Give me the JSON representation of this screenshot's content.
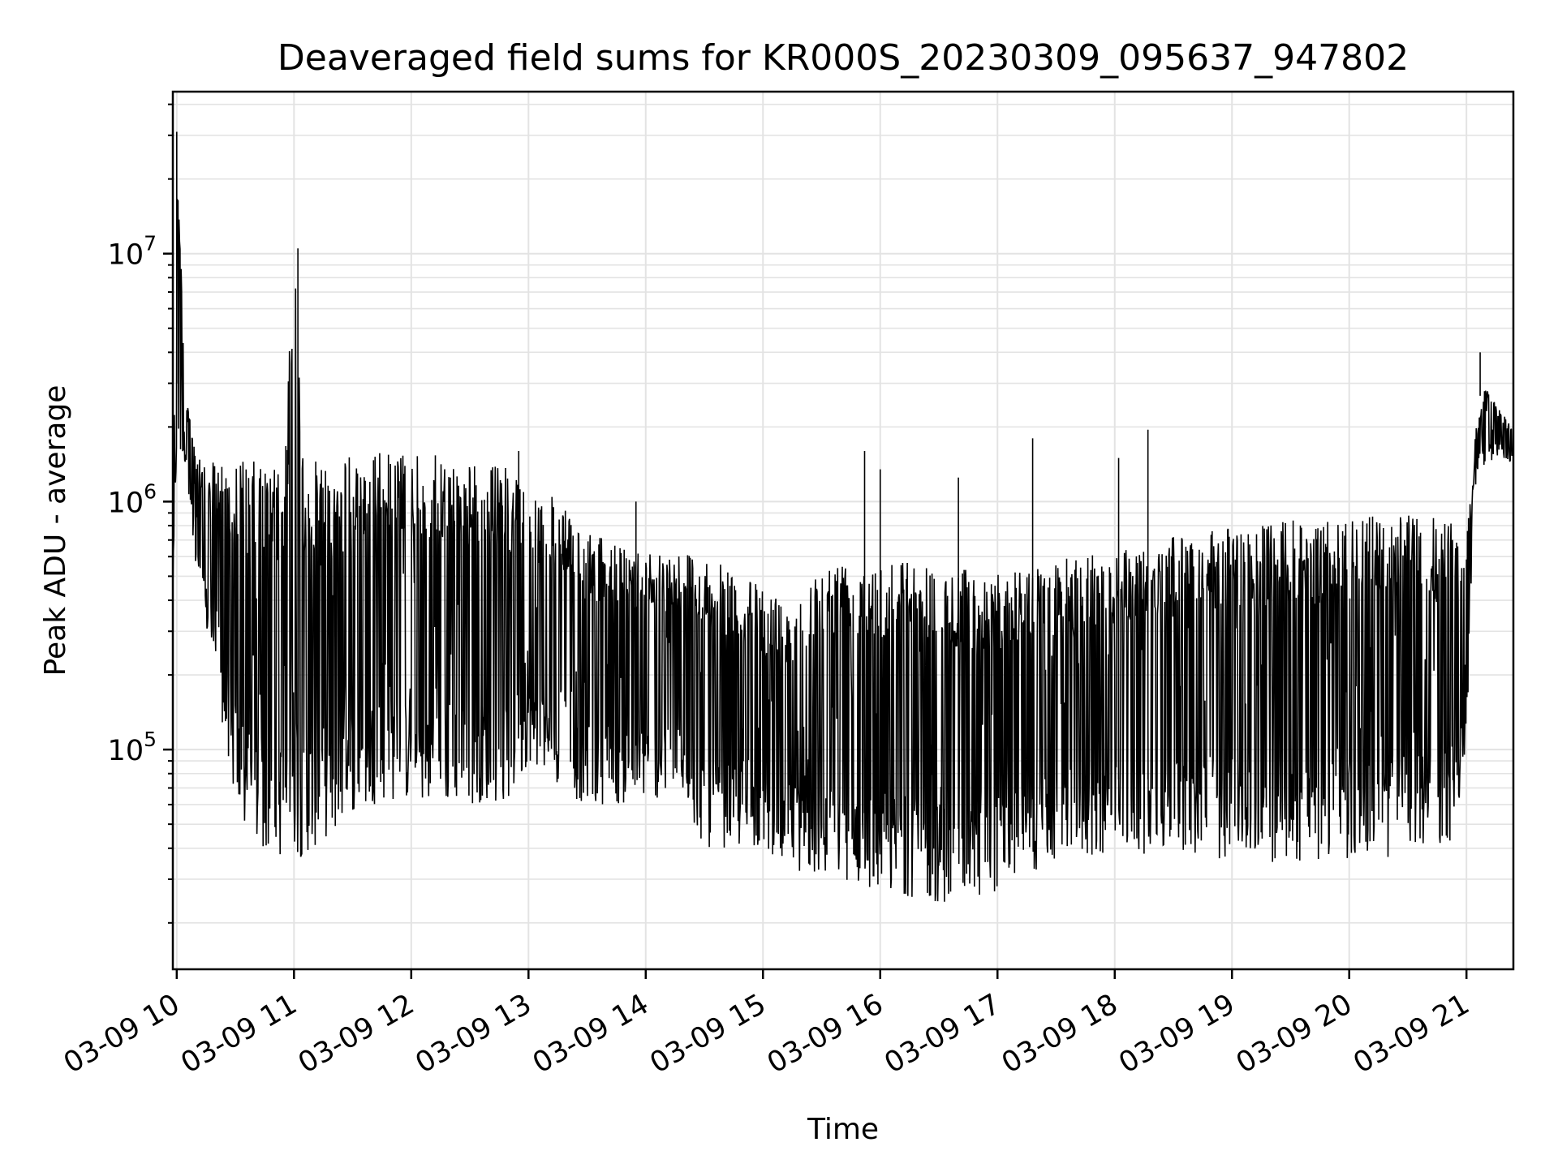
{
  "chart_data": {
    "type": "line",
    "title": "Deaveraged field sums for KR000S_20230309_095637_947802",
    "xlabel": "Time",
    "ylabel": "Peak ADU - average",
    "y_scale": "log",
    "ylim": [
      13000,
      45000000
    ],
    "xlim": [
      "2023-03-09 09:58",
      "2023-03-09 21:24"
    ],
    "grid": true,
    "line_color": "#000000",
    "grid_color": "#e3e3e3",
    "x_tick_labels": [
      "03-09 10",
      "03-09 11",
      "03-09 12",
      "03-09 13",
      "03-09 14",
      "03-09 15",
      "03-09 16",
      "03-09 17",
      "03-09 18",
      "03-09 19",
      "03-09 20",
      "03-09 21"
    ],
    "x_tick_times": [
      "2023-03-09 10:00",
      "2023-03-09 11:00",
      "2023-03-09 12:00",
      "2023-03-09 13:00",
      "2023-03-09 14:00",
      "2023-03-09 15:00",
      "2023-03-09 16:00",
      "2023-03-09 17:00",
      "2023-03-09 18:00",
      "2023-03-09 19:00",
      "2023-03-09 20:00",
      "2023-03-09 21:00"
    ],
    "y_ticks": [
      {
        "value": 100000,
        "base": "10",
        "exp": "5"
      },
      {
        "value": 1000000,
        "base": "10",
        "exp": "6"
      },
      {
        "value": 10000000,
        "base": "10",
        "exp": "7"
      }
    ],
    "series": [
      {
        "x": [
          "2023-03-09 09:58",
          "2023-03-09 10:00",
          "2023-03-09 10:05",
          "2023-03-09 10:10",
          "2023-03-09 10:15",
          "2023-03-09 10:20",
          "2023-03-09 10:25",
          "2023-03-09 10:30",
          "2023-03-09 10:35",
          "2023-03-09 10:40",
          "2023-03-09 10:45",
          "2023-03-09 10:50",
          "2023-03-09 10:55",
          "2023-03-09 11:00",
          "2023-03-09 11:05",
          "2023-03-09 11:10",
          "2023-03-09 11:15",
          "2023-03-09 11:20",
          "2023-03-09 11:30",
          "2023-03-09 11:40",
          "2023-03-09 11:50",
          "2023-03-09 12:00",
          "2023-03-09 12:10",
          "2023-03-09 12:20",
          "2023-03-09 12:30",
          "2023-03-09 12:40",
          "2023-03-09 12:50",
          "2023-03-09 13:00",
          "2023-03-09 13:10",
          "2023-03-09 13:20",
          "2023-03-09 13:30",
          "2023-03-09 13:40",
          "2023-03-09 13:50",
          "2023-03-09 14:00",
          "2023-03-09 14:10",
          "2023-03-09 14:20",
          "2023-03-09 14:30",
          "2023-03-09 14:40",
          "2023-03-09 14:50",
          "2023-03-09 15:00",
          "2023-03-09 15:10",
          "2023-03-09 15:20",
          "2023-03-09 15:30",
          "2023-03-09 15:40",
          "2023-03-09 15:50",
          "2023-03-09 16:00",
          "2023-03-09 16:10",
          "2023-03-09 16:20",
          "2023-03-09 16:30",
          "2023-03-09 16:40",
          "2023-03-09 16:50",
          "2023-03-09 17:00",
          "2023-03-09 17:10",
          "2023-03-09 17:20",
          "2023-03-09 17:30",
          "2023-03-09 17:40",
          "2023-03-09 17:50",
          "2023-03-09 18:00",
          "2023-03-09 18:10",
          "2023-03-09 18:20",
          "2023-03-09 18:30",
          "2023-03-09 18:40",
          "2023-03-09 18:50",
          "2023-03-09 19:00",
          "2023-03-09 19:10",
          "2023-03-09 19:20",
          "2023-03-09 19:30",
          "2023-03-09 19:40",
          "2023-03-09 19:50",
          "2023-03-09 20:00",
          "2023-03-09 20:10",
          "2023-03-09 20:20",
          "2023-03-09 20:30",
          "2023-03-09 20:40",
          "2023-03-09 20:50",
          "2023-03-09 20:55",
          "2023-03-09 21:00",
          "2023-03-09 21:05",
          "2023-03-09 21:10",
          "2023-03-09 21:15",
          "2023-03-09 21:20",
          "2023-03-09 21:24"
        ],
        "low": [
          400000,
          1500000,
          1400000,
          450000,
          300000,
          200000,
          100000,
          60000,
          45000,
          40000,
          38000,
          36000,
          37000,
          36000,
          37000,
          40000,
          42000,
          45000,
          55000,
          60000,
          62000,
          62000,
          60000,
          60000,
          60000,
          62000,
          60000,
          90000,
          80000,
          65000,
          60000,
          60000,
          60000,
          65000,
          62000,
          60000,
          40000,
          40000,
          40000,
          40000,
          35000,
          32000,
          30000,
          30000,
          28000,
          27000,
          26000,
          25000,
          24000,
          24000,
          25000,
          27000,
          30000,
          32000,
          35000,
          36000,
          37000,
          38000,
          38000,
          38000,
          37000,
          36000,
          36000,
          36000,
          35000,
          35000,
          35000,
          35000,
          35000,
          36000,
          36000,
          36000,
          38000,
          40000,
          40000,
          50000,
          90000,
          1300000,
          1400000,
          1450000,
          1500000,
          1400000
        ],
        "high": [
          700000,
          31000000,
          2500000,
          1800000,
          1300000,
          1500000,
          1500000,
          1500000,
          1500000,
          1450000,
          1400000,
          1400000,
          1400000,
          10500000,
          1400000,
          1450000,
          1500000,
          1500000,
          1550000,
          1600000,
          1600000,
          1580000,
          1550000,
          1500000,
          1450000,
          1400000,
          1400000,
          1200000,
          1100000,
          900000,
          750000,
          700000,
          650000,
          650000,
          650000,
          650000,
          600000,
          550000,
          500000,
          450000,
          400000,
          450000,
          550000,
          600000,
          620000,
          620000,
          600000,
          580000,
          560000,
          540000,
          530000,
          520000,
          530000,
          550000,
          580000,
          600000,
          620000,
          650000,
          680000,
          700000,
          720000,
          750000,
          780000,
          800000,
          820000,
          830000,
          840000,
          850000,
          850000,
          860000,
          870000,
          880000,
          880000,
          880000,
          870000,
          800000,
          700000,
          2000000,
          3000000,
          2500000,
          2200000,
          2000000
        ],
        "spikes": [
          {
            "x": "2023-03-09 10:00",
            "y": 31000000
          },
          {
            "x": "2023-03-09 11:02",
            "y": 10500000
          },
          {
            "x": "2023-03-09 12:55",
            "y": 1600000
          },
          {
            "x": "2023-03-09 13:55",
            "y": 1000000
          },
          {
            "x": "2023-03-09 15:52",
            "y": 1600000
          },
          {
            "x": "2023-03-09 16:00",
            "y": 1350000
          },
          {
            "x": "2023-03-09 16:40",
            "y": 1250000
          },
          {
            "x": "2023-03-09 17:18",
            "y": 1800000
          },
          {
            "x": "2023-03-09 18:17",
            "y": 1950000
          },
          {
            "x": "2023-03-09 18:02",
            "y": 1500000
          },
          {
            "x": "2023-03-09 21:07",
            "y": 4000000
          }
        ]
      }
    ]
  }
}
